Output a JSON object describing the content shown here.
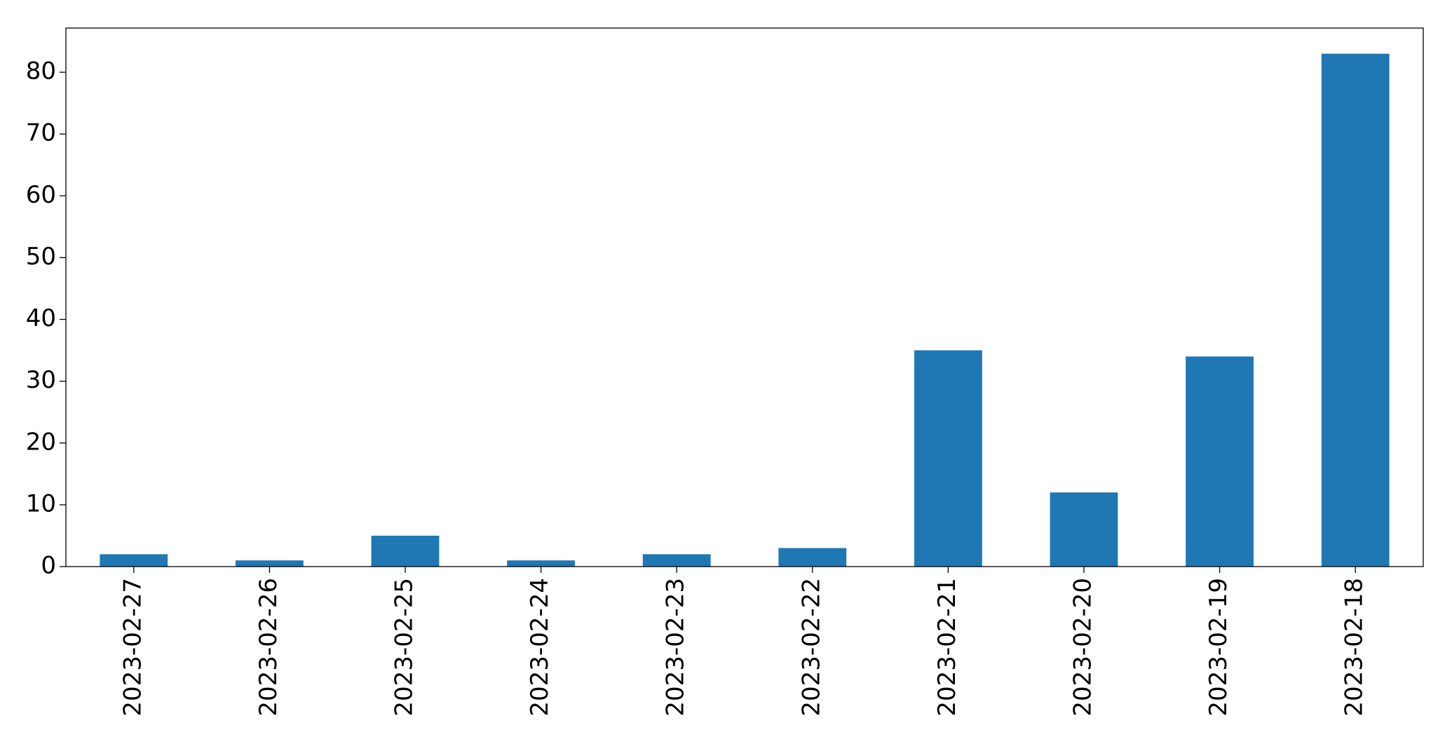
{
  "chart_data": {
    "type": "bar",
    "categories": [
      "2023-02-27",
      "2023-02-26",
      "2023-02-25",
      "2023-02-24",
      "2023-02-23",
      "2023-02-22",
      "2023-02-21",
      "2023-02-20",
      "2023-02-19",
      "2023-02-18"
    ],
    "values": [
      2,
      1,
      5,
      1,
      2,
      3,
      35,
      12,
      34,
      83
    ],
    "color": "#1f77b4",
    "ylim": [
      0,
      87.15
    ],
    "yticks": [
      0,
      10,
      20,
      30,
      40,
      50,
      60,
      70,
      80
    ],
    "grid": false
  }
}
